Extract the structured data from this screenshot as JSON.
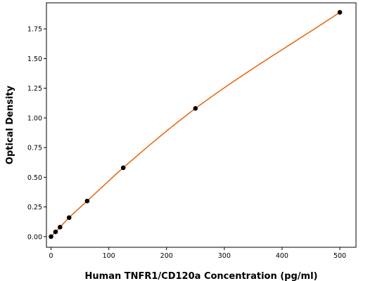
{
  "chart_data": {
    "type": "scatter",
    "title": "",
    "xlabel": "Human TNFR1/CD120a Concentration (pg/ml)",
    "ylabel": "Optical Density",
    "xlim": [
      -8,
      528
    ],
    "ylim": [
      -0.09,
      1.97
    ],
    "xticks": [
      0,
      100,
      200,
      300,
      400,
      500
    ],
    "yticks": [
      0.0,
      0.25,
      0.5,
      0.75,
      1.0,
      1.25,
      1.5,
      1.75
    ],
    "xtick_labels": [
      "0",
      "100",
      "200",
      "300",
      "400",
      "500"
    ],
    "ytick_labels": [
      "0.00",
      "0.25",
      "0.50",
      "0.75",
      "1.00",
      "1.25",
      "1.50",
      "1.75"
    ],
    "grid": false,
    "legend": "none",
    "series": [
      {
        "kind": "points",
        "color": "#000000",
        "x": [
          0,
          7.8,
          15.6,
          31.25,
          62.5,
          125,
          250,
          500
        ],
        "y": [
          0.0,
          0.04,
          0.08,
          0.16,
          0.3,
          0.58,
          1.08,
          1.89
        ]
      },
      {
        "kind": "fitted-curve",
        "color": "#e8630a"
      }
    ]
  }
}
